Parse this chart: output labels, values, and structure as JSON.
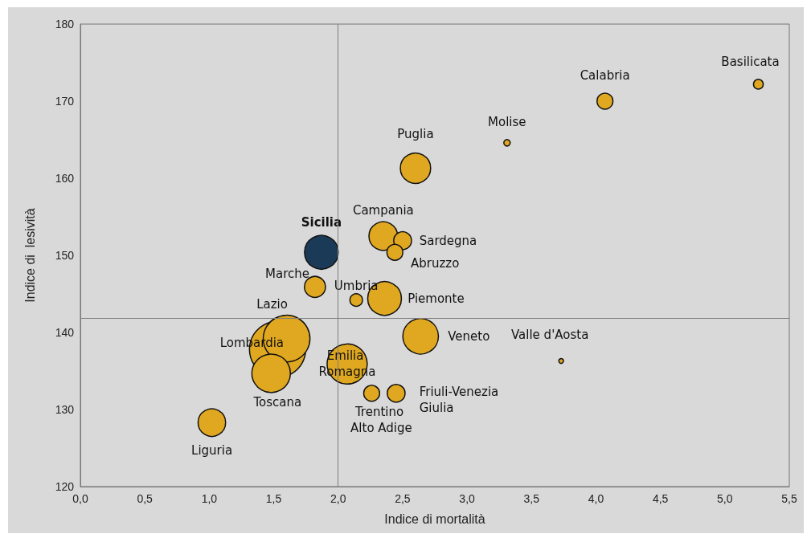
{
  "chart_data": {
    "type": "bubble",
    "xlabel": "Indice di mortalità",
    "ylabel": "Indice di  lesività",
    "xlim": [
      0,
      5.5
    ],
    "xticks": [
      {
        "value": 0,
        "label": "0,0"
      },
      {
        "value": 0.5,
        "label": "0,5"
      },
      {
        "value": 1,
        "label": "1,0"
      },
      {
        "value": 1.5,
        "label": "1,5"
      },
      {
        "value": 2,
        "label": "2,0"
      },
      {
        "value": 2.5,
        "label": "2,5"
      },
      {
        "value": 3,
        "label": "3,0"
      },
      {
        "value": 3.5,
        "label": "3,5"
      },
      {
        "value": 4,
        "label": "4,0"
      },
      {
        "value": 4.5,
        "label": "4,5"
      },
      {
        "value": 5,
        "label": "5,0"
      },
      {
        "value": 5.5,
        "label": "5,5"
      }
    ],
    "ylim": [
      120,
      180
    ],
    "yticks": [
      120,
      130,
      140,
      150,
      160,
      170,
      180
    ],
    "grid": false,
    "legend": false,
    "marker": "circle",
    "ref_lines": [
      {
        "axis": "x",
        "value": 2.0,
        "color": "#7f7f7f"
      },
      {
        "axis": "y",
        "value": 141.8,
        "color": "#7f7f7f"
      }
    ],
    "series": [
      {
        "name": "Lombardia",
        "color": "#e0a820",
        "x": [
          1.53
        ],
        "values": [
          137.8
        ],
        "sizes": [
          1
        ]
      },
      {
        "name": "Lazio",
        "color": "#e0a820",
        "x": [
          1.6
        ],
        "values": [
          139.2
        ],
        "sizes": [
          0.69
        ]
      },
      {
        "name": "Toscana",
        "color": "#e0a820",
        "x": [
          1.48
        ],
        "values": [
          134.7
        ],
        "sizes": [
          0.47
        ]
      },
      {
        "name": "Emilia Romagna",
        "color": "#e0a820",
        "x": [
          2.07
        ],
        "values": [
          135.9
        ],
        "sizes": [
          0.51
        ]
      },
      {
        "name": "Sicilia",
        "color": "#1b3a57",
        "x": [
          1.87
        ],
        "values": [
          150.4
        ],
        "sizes": [
          0.36
        ]
      },
      {
        "name": "Puglia",
        "color": "#e0a820",
        "x": [
          2.6
        ],
        "values": [
          161.3
        ],
        "sizes": [
          0.29
        ]
      },
      {
        "name": "Molise",
        "color": "#e0a820",
        "x": [
          3.31
        ],
        "values": [
          164.6
        ],
        "sizes": [
          0.013
        ]
      },
      {
        "name": "Calabria",
        "color": "#e0a820",
        "x": [
          4.07
        ],
        "values": [
          170
        ],
        "sizes": [
          0.08
        ]
      },
      {
        "name": "Basilicata",
        "color": "#e0a820",
        "x": [
          5.26
        ],
        "values": [
          172.2
        ],
        "sizes": [
          0.03
        ]
      },
      {
        "name": "Campania",
        "color": "#e0a820",
        "x": [
          2.35
        ],
        "values": [
          152.5
        ],
        "sizes": [
          0.26
        ]
      },
      {
        "name": "Sardegna",
        "color": "#e0a820",
        "x": [
          2.5
        ],
        "values": [
          151.9
        ],
        "sizes": [
          0.1
        ]
      },
      {
        "name": "Abruzzo",
        "color": "#e0a820",
        "x": [
          2.44
        ],
        "values": [
          150.4
        ],
        "sizes": [
          0.08
        ]
      },
      {
        "name": "Marche",
        "color": "#e0a820",
        "x": [
          1.82
        ],
        "values": [
          145.9
        ],
        "sizes": [
          0.14
        ]
      },
      {
        "name": "Umbria",
        "color": "#e0a820",
        "x": [
          2.14
        ],
        "values": [
          144.2
        ],
        "sizes": [
          0.05
        ]
      },
      {
        "name": "Piemonte",
        "color": "#e0a820",
        "x": [
          2.36
        ],
        "values": [
          144.4
        ],
        "sizes": [
          0.36
        ]
      },
      {
        "name": "Veneto",
        "color": "#e0a820",
        "x": [
          2.64
        ],
        "values": [
          139.5
        ],
        "sizes": [
          0.4
        ]
      },
      {
        "name": "Valle d'Aosta",
        "color": "#e0a820",
        "x": [
          3.73
        ],
        "values": [
          136.3
        ],
        "sizes": [
          0.007
        ]
      },
      {
        "name": "Trentino Alto Adige",
        "color": "#e0a820",
        "x": [
          2.26
        ],
        "values": [
          132.1
        ],
        "sizes": [
          0.08
        ]
      },
      {
        "name": "Friuli-Venezia Giulia",
        "color": "#e0a820",
        "x": [
          2.45
        ],
        "values": [
          132.1
        ],
        "sizes": [
          0.1
        ]
      },
      {
        "name": "Liguria",
        "color": "#e0a820",
        "x": [
          1.02
        ],
        "values": [
          128.3
        ],
        "sizes": [
          0.24
        ]
      }
    ]
  }
}
